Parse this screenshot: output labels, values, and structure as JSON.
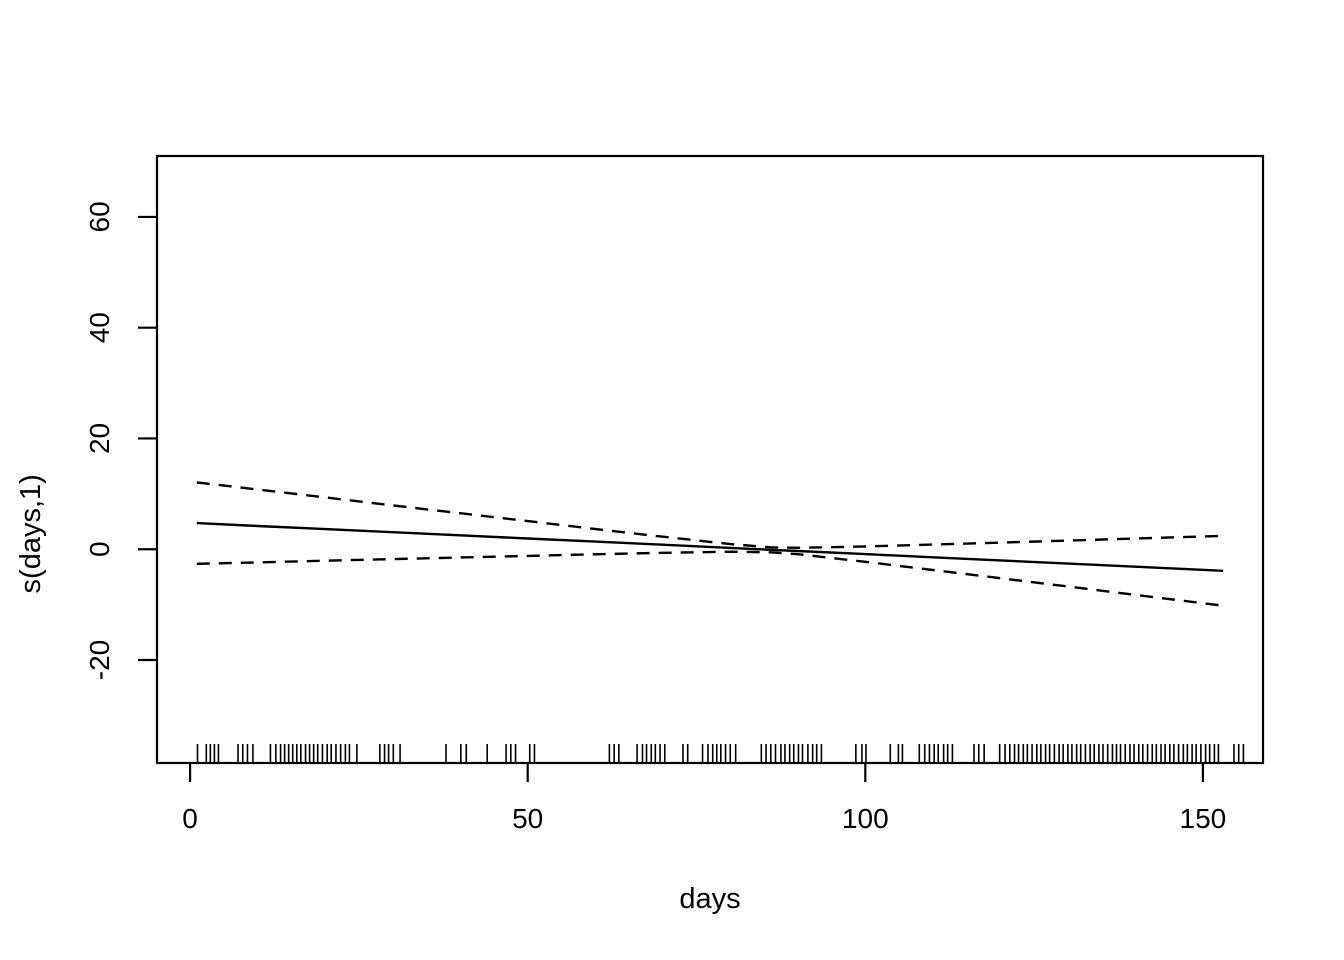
{
  "chart_data": {
    "type": "line",
    "description": "R mgcv GAM partial-effect smooth plot: linear smooth estimate with dashed 95% confidence bands and data rug",
    "xlabel": "days",
    "ylabel": "s(days,1)",
    "x_ticks": [
      0,
      50,
      100,
      150
    ],
    "y_ticks": [
      -20,
      0,
      20,
      40,
      60
    ],
    "xlim": [
      -4.9,
      158.9
    ],
    "ylim": [
      -38.6,
      71.0
    ],
    "grid": false,
    "legend": "none",
    "x": [
      1,
      10,
      20,
      30,
      40,
      50,
      60,
      70,
      80,
      86,
      90,
      100,
      110,
      120,
      130,
      140,
      153
    ],
    "series": [
      {
        "name": "fit",
        "style": "solid",
        "values": [
          4.71,
          4.2,
          3.64,
          3.07,
          2.51,
          1.94,
          1.37,
          0.81,
          0.24,
          -0.1,
          -0.32,
          -0.89,
          -1.45,
          -2.02,
          -2.59,
          -3.15,
          -3.89
        ]
      },
      {
        "name": "upper-95ci",
        "style": "dashed",
        "values": [
          12.06,
          10.78,
          9.35,
          7.92,
          6.51,
          5.08,
          3.66,
          2.26,
          0.92,
          0.35,
          0.26,
          0.5,
          0.85,
          1.2,
          1.56,
          1.94,
          2.41
        ]
      },
      {
        "name": "lower-95ci",
        "style": "dashed",
        "values": [
          -2.64,
          -2.38,
          -2.07,
          -1.78,
          -1.49,
          -1.2,
          -0.92,
          -0.64,
          -0.44,
          -0.55,
          -0.9,
          -2.28,
          -3.75,
          -5.24,
          -6.74,
          -8.24,
          -10.19
        ]
      }
    ],
    "rug": [
      1.1,
      2.4,
      3,
      3.6,
      4.2,
      7.1,
      7.8,
      8.5,
      9.3,
      11.9,
      12.7,
      13.4,
      14,
      14.6,
      15.2,
      15.8,
      16.4,
      17.1,
      17.7,
      18.3,
      18.9,
      19.6,
      20.3,
      20.9,
      21.6,
      22.3,
      23,
      23.6,
      24.7,
      28.1,
      28.8,
      29.4,
      30.1,
      31.1,
      37.9,
      40.1,
      40.9,
      44,
      46.8,
      47.5,
      48.2,
      50.3,
      51,
      62.1,
      62.8,
      63.5,
      66.2,
      67,
      67.6,
      68.3,
      68.9,
      69.6,
      70.3,
      73,
      73.7,
      75.9,
      76.7,
      77.4,
      78,
      78.6,
      79.3,
      80,
      80.8,
      84.6,
      85.3,
      86,
      86.7,
      87.5,
      88.1,
      88.8,
      89.4,
      90.1,
      90.7,
      91.5,
      92.2,
      92.8,
      93.5,
      98.6,
      99.5,
      100.1,
      103.7,
      104.9,
      105.5,
      108,
      108.8,
      109.5,
      110.2,
      110.8,
      111.6,
      112.2,
      112.9,
      116.1,
      116.8,
      117.6,
      119.9,
      120.7,
      121.4,
      122.1,
      122.7,
      123.4,
      124,
      124.7,
      125.4,
      126,
      126.7,
      127.3,
      128,
      128.7,
      129.3,
      130,
      130.6,
      131.3,
      131.9,
      132.6,
      133.3,
      133.9,
      134.6,
      135.2,
      135.9,
      136.6,
      137.2,
      137.8,
      138.5,
      139.2,
      139.8,
      140.5,
      141.1,
      141.8,
      142.5,
      143.1,
      143.8,
      144.4,
      145.1,
      145.7,
      146.4,
      147.1,
      147.7,
      148.4,
      149,
      149.7,
      150.4,
      151,
      151.7,
      152.3,
      154.6,
      155.3,
      156
    ],
    "colors": {
      "foreground": "#000000",
      "background": "#ffffff"
    }
  }
}
